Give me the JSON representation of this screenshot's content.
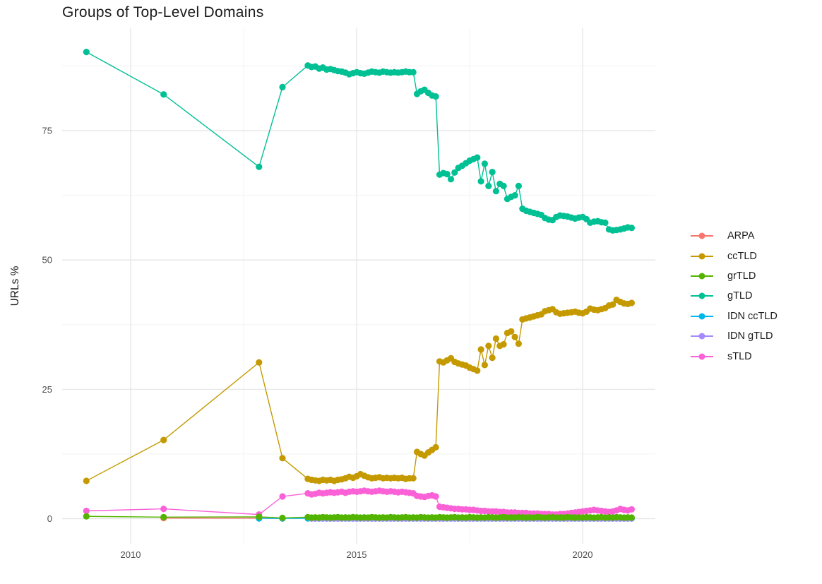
{
  "chart_data": {
    "type": "line",
    "title": "Groups of Top-Level Domains",
    "xlabel": "",
    "ylabel": "URLs %",
    "x_ticks": [
      2010,
      2015,
      2020
    ],
    "x_minor_ticks": [
      2012.5,
      2017.5
    ],
    "y_ticks": [
      0,
      25,
      50,
      75
    ],
    "y_minor_ticks": [
      12.5,
      37.5,
      62.5,
      87.5
    ],
    "xlim": [
      2008.45,
      2021.6
    ],
    "ylim": [
      -4.9,
      94.8
    ],
    "grid": true,
    "legend_position": "right",
    "series": [
      {
        "name": "ARPA",
        "color": "#F8766D",
        "early": [
          [
            2010.73,
            0.12
          ],
          [
            2012.84,
            0.1
          ],
          [
            2013.36,
            0.05
          ]
        ]
      },
      {
        "name": "ccTLD",
        "color": "#C49A00",
        "early": [
          [
            2009.02,
            7.3
          ],
          [
            2010.73,
            15.2
          ],
          [
            2012.84,
            30.2
          ],
          [
            2013.36,
            11.7
          ]
        ],
        "dense": {
          "start": 2013.92,
          "step": 0.0833,
          "values": [
            7.7,
            7.5,
            7.4,
            7.3,
            7.5,
            7.4,
            7.5,
            7.3,
            7.5,
            7.6,
            7.8,
            8.1,
            7.9,
            8.2,
            8.6,
            8.3,
            8.0,
            7.8,
            7.9,
            8.0,
            7.8,
            7.9,
            7.8,
            7.9,
            7.8,
            7.9,
            7.7,
            7.8,
            7.8,
            12.9,
            12.5,
            12.2,
            12.8,
            13.3,
            13.8,
            30.4,
            30.2,
            30.6,
            31.0,
            30.3,
            30.0,
            29.8,
            29.6,
            29.2,
            28.9,
            28.6,
            32.7,
            29.7,
            33.4,
            31.1,
            34.8,
            33.4,
            33.7,
            35.9,
            36.2,
            35.1,
            33.8,
            38.5,
            38.7,
            38.9,
            39.1,
            39.3,
            39.5,
            40.1,
            40.3,
            40.5,
            39.9,
            39.6,
            39.7,
            39.8,
            39.9,
            40.0,
            39.8,
            39.7,
            40.0,
            40.6,
            40.4,
            40.3,
            40.5,
            40.7,
            41.2,
            41.4,
            42.3,
            41.9,
            41.6,
            41.5,
            41.7
          ]
        }
      },
      {
        "name": "grTLD",
        "color": "#53B400",
        "early": [
          [
            2009.02,
            0.45
          ],
          [
            2010.73,
            0.3
          ],
          [
            2012.84,
            0.35
          ],
          [
            2013.36,
            0.15
          ]
        ],
        "dense": {
          "start": 2013.92,
          "step": 0.0833,
          "values": [
            0.3,
            0.2,
            0.25,
            0.2,
            0.3,
            0.25,
            0.2,
            0.25,
            0.3,
            0.2,
            0.25,
            0.2,
            0.3,
            0.25,
            0.2,
            0.25,
            0.2,
            0.3,
            0.25,
            0.2,
            0.25,
            0.2,
            0.3,
            0.25,
            0.2,
            0.25,
            0.3,
            0.2,
            0.25,
            0.2,
            0.3,
            0.25,
            0.2,
            0.25,
            0.2,
            0.3,
            0.25,
            0.2,
            0.25,
            0.3,
            0.2,
            0.25,
            0.2,
            0.3,
            0.25,
            0.2,
            0.25,
            0.2,
            0.3,
            0.25,
            0.2,
            0.25,
            0.3,
            0.2,
            0.25,
            0.2,
            0.3,
            0.25,
            0.2,
            0.25,
            0.2,
            0.3,
            0.25,
            0.2,
            0.25,
            0.3,
            0.2,
            0.25,
            0.2,
            0.3,
            0.25,
            0.2,
            0.25,
            0.2,
            0.3,
            0.25,
            0.2,
            0.25,
            0.3,
            0.2,
            0.25,
            0.2,
            0.3,
            0.25,
            0.2,
            0.25,
            0.2
          ]
        }
      },
      {
        "name": "gTLD",
        "color": "#00C094",
        "early": [
          [
            2009.02,
            90.2
          ],
          [
            2010.73,
            82.0
          ],
          [
            2012.84,
            68.0
          ],
          [
            2013.36,
            83.4
          ]
        ],
        "dense": {
          "start": 2013.92,
          "step": 0.0833,
          "values": [
            87.6,
            87.3,
            87.4,
            87.0,
            87.2,
            86.8,
            86.9,
            86.7,
            86.5,
            86.4,
            86.2,
            85.9,
            86.1,
            86.3,
            86.1,
            86.0,
            86.2,
            86.4,
            86.3,
            86.2,
            86.4,
            86.3,
            86.2,
            86.3,
            86.2,
            86.3,
            86.4,
            86.3,
            86.3,
            82.1,
            82.6,
            82.9,
            82.3,
            81.8,
            81.6,
            66.5,
            66.8,
            66.6,
            65.6,
            66.9,
            67.8,
            68.2,
            68.7,
            69.2,
            69.5,
            69.8,
            65.2,
            68.6,
            64.3,
            67.0,
            63.3,
            64.7,
            64.3,
            61.8,
            62.2,
            62.5,
            64.3,
            59.9,
            59.5,
            59.3,
            59.1,
            58.9,
            58.7,
            58.1,
            57.8,
            57.7,
            58.3,
            58.6,
            58.5,
            58.4,
            58.2,
            58.0,
            58.2,
            58.3,
            57.9,
            57.2,
            57.4,
            57.5,
            57.3,
            57.2,
            55.9,
            55.7,
            55.8,
            55.9,
            56.1,
            56.3,
            56.2
          ]
        }
      },
      {
        "name": "IDN ccTLD",
        "color": "#00B6EB",
        "early": [
          [
            2012.84,
            0.06
          ],
          [
            2013.36,
            0.05
          ]
        ],
        "dense": {
          "start": 2013.92,
          "step": 0.0833,
          "fill": 0.05,
          "count": 87
        }
      },
      {
        "name": "IDN gTLD",
        "color": "#A58AFF",
        "early": [],
        "dense": {
          "start": 2014.0,
          "step": 0.0833,
          "fill": 0.03,
          "count": 86
        }
      },
      {
        "name": "sTLD",
        "color": "#FB61D7",
        "early": [
          [
            2009.02,
            1.5
          ],
          [
            2010.73,
            1.9
          ],
          [
            2012.84,
            0.8
          ],
          [
            2013.36,
            4.3
          ]
        ],
        "dense": {
          "start": 2013.92,
          "step": 0.0833,
          "values": [
            4.9,
            4.7,
            4.8,
            5.0,
            4.9,
            5.0,
            5.1,
            5.0,
            5.1,
            5.2,
            5.0,
            5.2,
            5.3,
            5.2,
            5.3,
            5.4,
            5.3,
            5.2,
            5.3,
            5.4,
            5.3,
            5.2,
            5.3,
            5.2,
            5.1,
            5.2,
            5.1,
            5.0,
            4.9,
            4.4,
            4.3,
            4.2,
            4.4,
            4.5,
            4.3,
            2.3,
            2.2,
            2.1,
            2.0,
            1.9,
            1.9,
            1.8,
            1.8,
            1.7,
            1.7,
            1.6,
            1.5,
            1.5,
            1.4,
            1.4,
            1.4,
            1.3,
            1.3,
            1.2,
            1.2,
            1.2,
            1.1,
            1.1,
            1.1,
            1.0,
            1.0,
            1.0,
            0.9,
            0.9,
            0.9,
            0.8,
            0.8,
            0.9,
            0.9,
            1.0,
            1.1,
            1.2,
            1.3,
            1.4,
            1.5,
            1.6,
            1.7,
            1.6,
            1.5,
            1.4,
            1.3,
            1.4,
            1.6,
            1.9,
            1.7,
            1.6,
            1.8
          ]
        }
      }
    ]
  },
  "legend": {
    "items": [
      "ARPA",
      "ccTLD",
      "grTLD",
      "gTLD",
      "IDN ccTLD",
      "IDN gTLD",
      "sTLD"
    ]
  },
  "axes": {
    "x_tick_labels": [
      "2010",
      "2015",
      "2020"
    ],
    "y_tick_labels": [
      "0",
      "25",
      "50",
      "75"
    ]
  }
}
